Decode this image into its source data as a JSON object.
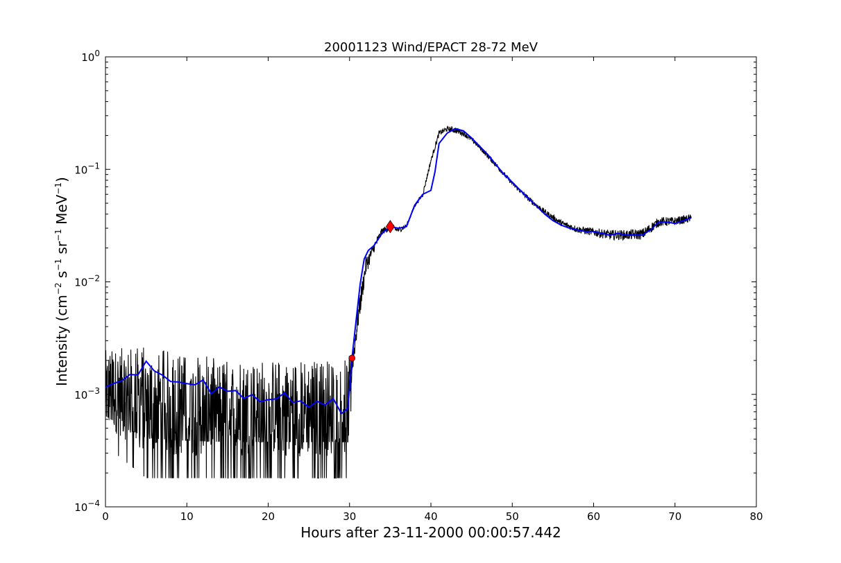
{
  "chart_data": {
    "type": "line",
    "title": "20001123 Wind/EPACT 28-72 MeV",
    "xlabel": "Hours after 23-11-2000 00:00:57.442",
    "ylabel_parts": [
      "Intensity (cm",
      "−2",
      " s",
      "−1",
      " sr",
      "−1",
      " MeV",
      "−1",
      ")"
    ],
    "xlim": [
      0,
      80
    ],
    "ylim": [
      0.0001,
      1
    ],
    "yscale": "log",
    "grid": false,
    "x_ticks": [
      {
        "value": 0,
        "label": "0"
      },
      {
        "value": 10,
        "label": "10"
      },
      {
        "value": 20,
        "label": "20"
      },
      {
        "value": 30,
        "label": "30"
      },
      {
        "value": 40,
        "label": "40"
      },
      {
        "value": 50,
        "label": "50"
      },
      {
        "value": 60,
        "label": "60"
      },
      {
        "value": 70,
        "label": "70"
      },
      {
        "value": 80,
        "label": "80"
      }
    ],
    "y_ticks": [
      {
        "value": 0.0001,
        "base": "10",
        "exp": "-4"
      },
      {
        "value": 0.001,
        "base": "10",
        "exp": "-3"
      },
      {
        "value": 0.01,
        "base": "10",
        "exp": "-2"
      },
      {
        "value": 0.1,
        "base": "10",
        "exp": "-1"
      },
      {
        "value": 1,
        "base": "10",
        "exp": "0"
      }
    ],
    "series": [
      {
        "color": "#000000",
        "style": "raw-noisy",
        "x_range": [
          0,
          72
        ],
        "envelope": {
          "x": [
            0,
            5,
            10,
            15,
            20,
            25,
            28,
            29.8,
            30.3,
            31,
            32,
            33,
            34,
            35,
            36,
            37,
            38,
            39,
            40,
            41,
            42,
            43,
            44,
            45,
            46,
            48,
            50,
            52,
            54,
            56,
            58,
            60,
            62,
            64,
            66,
            68,
            70,
            72
          ],
          "high": [
            0.0025,
            0.0028,
            0.0023,
            0.0021,
            0.0021,
            0.0021,
            0.0021,
            0.0021,
            0.0025,
            0.007,
            0.019,
            0.024,
            0.032,
            0.034,
            0.032,
            0.034,
            0.05,
            0.065,
            0.13,
            0.23,
            0.25,
            0.25,
            0.23,
            0.2,
            0.17,
            0.12,
            0.08,
            0.06,
            0.046,
            0.037,
            0.033,
            0.032,
            0.031,
            0.031,
            0.032,
            0.04,
            0.04,
            0.042
          ],
          "low": [
            0.00035,
            0.00018,
            0.00018,
            0.00018,
            0.00018,
            0.00018,
            0.00018,
            0.00018,
            0.0012,
            0.003,
            0.01,
            0.017,
            0.025,
            0.027,
            0.026,
            0.029,
            0.045,
            0.055,
            0.11,
            0.19,
            0.21,
            0.2,
            0.19,
            0.17,
            0.145,
            0.1,
            0.07,
            0.05,
            0.038,
            0.03,
            0.026,
            0.024,
            0.022,
            0.022,
            0.022,
            0.029,
            0.03,
            0.032
          ]
        }
      },
      {
        "color": "#0000ff",
        "style": "smoothed",
        "x": [
          0,
          1,
          2,
          3,
          4,
          5,
          6,
          7,
          8,
          9,
          10,
          11,
          12,
          13,
          14,
          15,
          16,
          17,
          18,
          19,
          20,
          21,
          22,
          23,
          24,
          25,
          26,
          27,
          28,
          29,
          29.8,
          30.3,
          30.8,
          31.3,
          31.8,
          32.3,
          33,
          34,
          35,
          36,
          37,
          38,
          39,
          40,
          40.5,
          41,
          42,
          43,
          44,
          45,
          46,
          47,
          48,
          49,
          50,
          51,
          52,
          53,
          54,
          55,
          56,
          57,
          58,
          59,
          60,
          61,
          62,
          63,
          64,
          65,
          66,
          67,
          68,
          69,
          70,
          71,
          72
        ],
        "y": [
          0.0013,
          0.0014,
          0.0013,
          0.0015,
          0.0016,
          0.0018,
          0.0015,
          0.0014,
          0.0012,
          0.0012,
          0.0013,
          0.0012,
          0.0012,
          0.0011,
          0.0011,
          0.0011,
          0.00095,
          0.001,
          0.0009,
          0.0009,
          0.00095,
          0.001,
          0.0009,
          0.00085,
          0.0009,
          0.00085,
          0.0009,
          0.0008,
          0.0008,
          0.00075,
          0.00075,
          0.0021,
          0.0045,
          0.0095,
          0.016,
          0.019,
          0.021,
          0.027,
          0.031,
          0.03,
          0.031,
          0.048,
          0.06,
          0.065,
          0.095,
          0.17,
          0.21,
          0.23,
          0.22,
          0.19,
          0.16,
          0.135,
          0.11,
          0.09,
          0.077,
          0.065,
          0.055,
          0.047,
          0.04,
          0.035,
          0.032,
          0.03,
          0.029,
          0.028,
          0.028,
          0.027,
          0.026,
          0.027,
          0.026,
          0.026,
          0.026,
          0.029,
          0.034,
          0.034,
          0.033,
          0.035,
          0.037
        ]
      }
    ],
    "markers": [
      {
        "x": 30.3,
        "y": 0.0021,
        "shape": "circle",
        "color": "#ff0000"
      },
      {
        "x": 35.0,
        "y": 0.031,
        "shape": "diamond",
        "color": "#ff0000"
      }
    ]
  }
}
